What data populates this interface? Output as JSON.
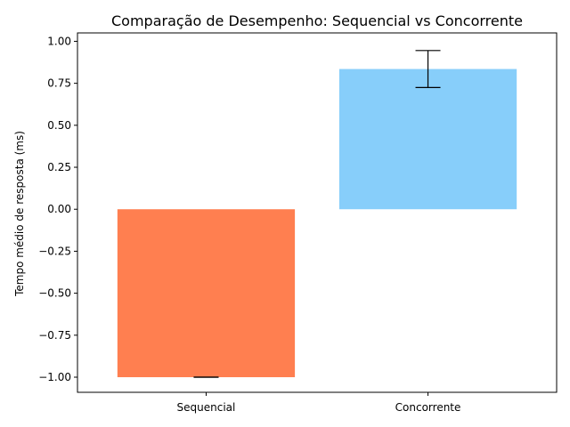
{
  "chart_data": {
    "type": "bar",
    "title": "Comparação de Desempenho: Sequencial vs Concorrente",
    "xlabel": "",
    "ylabel": "Tempo médio de resposta (ms)",
    "categories": [
      "Sequencial",
      "Concorrente"
    ],
    "values": [
      -1.0,
      0.835
    ],
    "errors": [
      0.0,
      0.11
    ],
    "colors": [
      "#ff7f50",
      "#87cefa"
    ],
    "ylim": [
      -1.09,
      1.05
    ],
    "yticks": [
      -1.0,
      -0.75,
      -0.5,
      -0.25,
      0.0,
      0.25,
      0.5,
      0.75,
      1.0
    ],
    "ytick_labels": [
      "−1.00",
      "−0.75",
      "−0.50",
      "−0.25",
      "0.00",
      "0.25",
      "0.50",
      "0.75",
      "1.00"
    ],
    "grid": false,
    "legend": "none"
  }
}
